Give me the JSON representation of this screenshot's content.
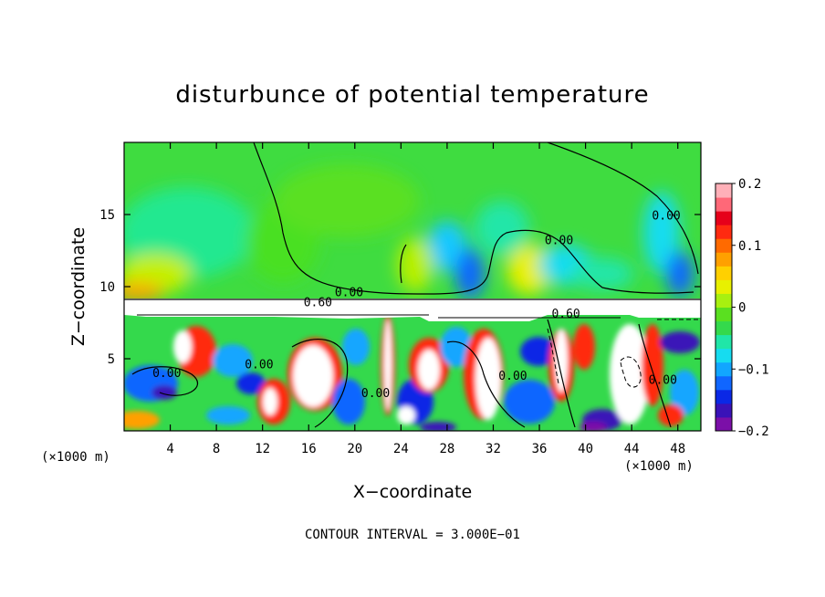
{
  "chart_data": {
    "type": "heatmap",
    "title": "disturbunce of potential temperature",
    "xlabel": "X−coordinate",
    "ylabel": "Z−coordinate",
    "x_unit": "(×1000 m)",
    "x_unit_right": "(×1000 m)",
    "xlim": [
      0,
      50
    ],
    "ylim": [
      0,
      20
    ],
    "xticks": [
      4,
      8,
      12,
      16,
      20,
      24,
      28,
      32,
      36,
      40,
      44,
      48
    ],
    "xtick_labels": [
      "4",
      "8",
      "12",
      "16",
      "20",
      "24",
      "28",
      "32",
      "36",
      "40",
      "44",
      "48"
    ],
    "yticks": [
      5,
      10,
      15
    ],
    "ytick_labels": [
      "5",
      "10",
      "15"
    ],
    "colorbar": {
      "range": [
        -0.2,
        0.2
      ],
      "tick_values": [
        0.2,
        0.1,
        0,
        -0.1,
        -0.2
      ],
      "tick_labels": [
        "0.2",
        "0.1",
        "0",
        "−0.1",
        "−0.2"
      ],
      "colors": [
        "#7b0fa8",
        "#3a12b8",
        "#0a28e6",
        "#1066ff",
        "#12a6ff",
        "#16dcf0",
        "#20e6a8",
        "#34d94c",
        "#5ae020",
        "#a8f010",
        "#e8f000",
        "#ffd000",
        "#ffa000",
        "#ff6a00",
        "#ff2a10",
        "#e6001a",
        "#ff6878",
        "#ffb0b8"
      ]
    },
    "contour_labels": [
      {
        "text": "0.00",
        "x": 19.5,
        "y": 9.6
      },
      {
        "text": "0.60",
        "x": 16.8,
        "y": 8.9
      },
      {
        "text": "0.00",
        "x": 37.7,
        "y": 13.2
      },
      {
        "text": "0.00",
        "x": 47.0,
        "y": 14.9
      },
      {
        "text": "0.60",
        "x": 38.3,
        "y": 8.1
      },
      {
        "text": "0.00",
        "x": 3.7,
        "y": 4.0
      },
      {
        "text": "0.00",
        "x": 11.7,
        "y": 4.6
      },
      {
        "text": "0.00",
        "x": 21.8,
        "y": 2.6
      },
      {
        "text": "0.00",
        "x": 33.7,
        "y": 3.8
      },
      {
        "text": "0.00",
        "x": 46.7,
        "y": 3.5
      }
    ],
    "contour_interval_text": "CONTOUR INTERVAL = 3.000E−01"
  }
}
